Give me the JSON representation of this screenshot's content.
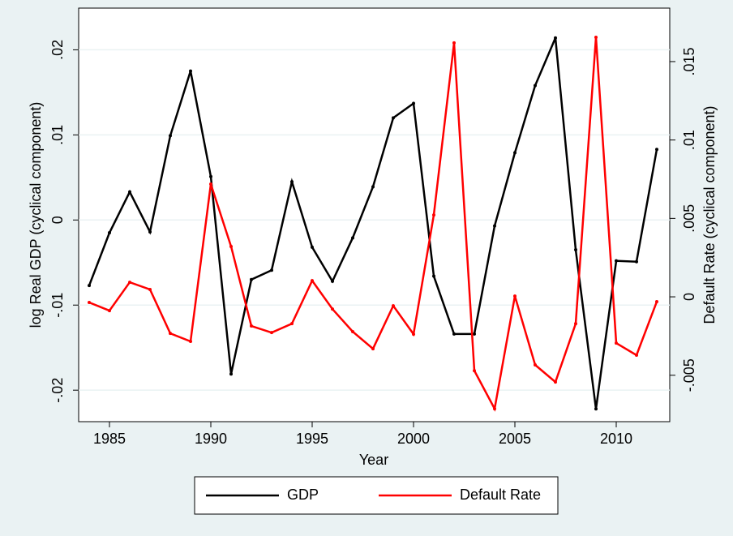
{
  "chart_data": {
    "type": "line",
    "xlabel": "Year",
    "ylabel": "log Real GDP (cyclical component)",
    "y2label": "Default Rate (cyclical component)",
    "x": [
      1984,
      1985,
      1986,
      1987,
      1988,
      1989,
      1990,
      1991,
      1992,
      1993,
      1994,
      1995,
      1996,
      1997,
      1998,
      1999,
      2000,
      2001,
      2002,
      2003,
      2004,
      2005,
      2006,
      2007,
      2008,
      2009,
      2010,
      2011,
      2012
    ],
    "series": [
      {
        "name": "GDP",
        "color": "#000000",
        "values": [
          -0.0077,
          -0.0015,
          0.0033,
          -0.0014,
          0.0099,
          0.0175,
          0.0051,
          -0.0181,
          -0.007,
          -0.0059,
          0.0045,
          -0.0032,
          -0.0072,
          -0.0021,
          0.0039,
          0.012,
          0.0137,
          -0.0066,
          -0.0134,
          -0.0134,
          -0.0007,
          0.0079,
          0.0158,
          0.0214,
          -0.0035,
          -0.0222,
          -0.0048,
          -0.0049,
          0.0083
        ]
      },
      {
        "name": "Default Rate",
        "color": "#ff0000",
        "axis": "y2",
        "values": [
          -0.00036,
          -0.00088,
          0.00093,
          0.00047,
          -0.00233,
          -0.00284,
          0.00719,
          0.00321,
          -0.00186,
          -0.00228,
          -0.00171,
          0.00103,
          -0.00078,
          -0.00222,
          -0.00331,
          -0.00057,
          -0.00238,
          0.00522,
          0.01619,
          -0.00471,
          -0.00714,
          5e-05,
          -0.00434,
          -0.00543,
          -0.00171,
          0.01655,
          -0.00295,
          -0.00372,
          -0.00031
        ]
      }
    ],
    "xlim": [
      1983.48,
      2012.64
    ],
    "xticks": [
      1985,
      1990,
      1995,
      2000,
      2005,
      2010
    ],
    "ylim": [
      -0.0237,
      0.0249
    ],
    "yticks": [
      {
        "value": 0.02,
        "label": ".02"
      },
      {
        "value": 0.01,
        "label": ".01"
      },
      0,
      {
        "value": -0.01,
        "label": "-.01"
      },
      {
        "value": -0.02,
        "label": "-.02"
      }
    ],
    "y2lim": [
      -0.00796,
      0.01841
    ],
    "y2ticks": [
      {
        "value": 0.015,
        "label": ".015"
      },
      {
        "value": 0.01,
        "label": ".01"
      },
      {
        "value": 0.005,
        "label": ".005"
      },
      0,
      {
        "value": -0.005,
        "label": "-.005"
      }
    ],
    "grid": true,
    "legend": "bottom"
  }
}
